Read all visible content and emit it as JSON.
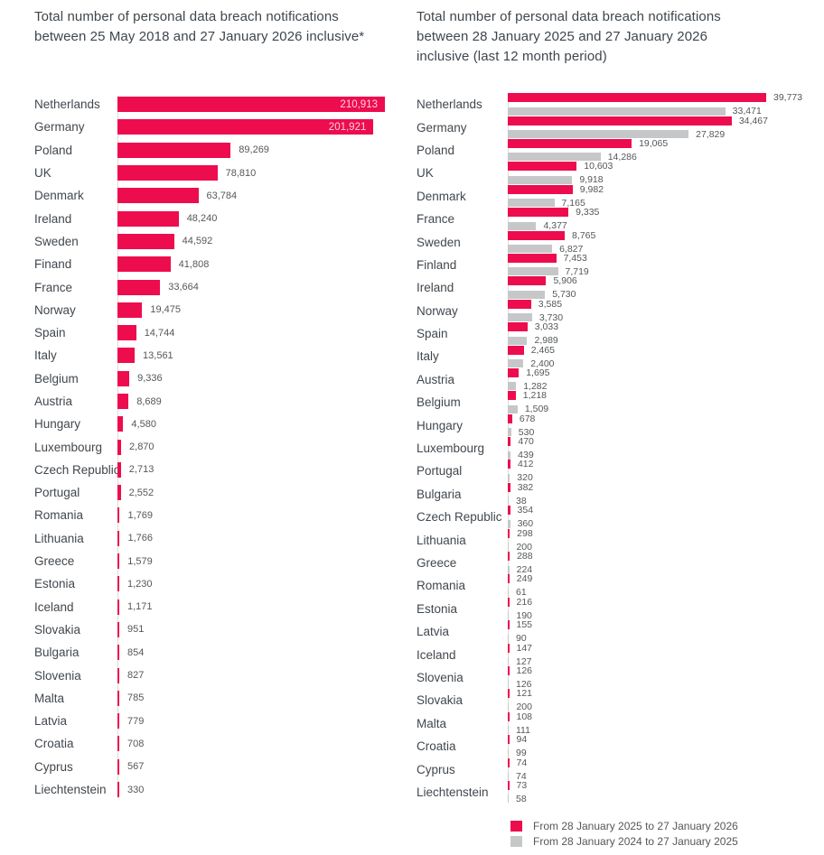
{
  "colors": {
    "current_period_pink": "#ed0c4e",
    "previous_period_gray": "#c6c7c8",
    "title_text": "#3f464c",
    "category_text": "#41474d",
    "value_text": "#54575a",
    "axis_baseline": "#dcdcdc"
  },
  "chart_data": [
    {
      "type": "bar",
      "orientation": "horizontal",
      "title": "Total number of personal data breach notifications between 25 May 2018 and 27 January 2026 inclusive*",
      "categories": [
        "Netherlands",
        "Germany",
        "Poland",
        "UK",
        "Denmark",
        "Ireland",
        "Sweden",
        "Finand",
        "France",
        "Norway",
        "Spain",
        "Italy",
        "Belgium",
        "Austria",
        "Hungary",
        "Luxembourg",
        "Czech Republic",
        "Portugal",
        "Romania",
        "Lithuania",
        "Greece",
        "Estonia",
        "Iceland",
        "Slovakia",
        "Bulgaria",
        "Slovenia",
        "Malta",
        "Latvia",
        "Croatia",
        "Cyprus",
        "Liechtenstein"
      ],
      "values": [
        210913,
        201921,
        89269,
        78810,
        63784,
        48240,
        44592,
        41808,
        33664,
        19475,
        14744,
        13561,
        9336,
        8689,
        4580,
        2870,
        2713,
        2552,
        1769,
        1766,
        1579,
        1230,
        1171,
        951,
        854,
        827,
        785,
        779,
        708,
        567,
        330
      ],
      "bar_color": "#ed0c4e",
      "xlim": [
        0,
        210913
      ],
      "grid": false,
      "legend_position": "none",
      "value_label_style": "inside bar for top two values, outside right otherwise"
    },
    {
      "type": "bar",
      "orientation": "horizontal",
      "title": "Total number of personal data breach notifications between 28 January 2025 and 27 January 2026 inclusive (last 12 month period)",
      "categories": [
        "Netherlands",
        "Germany",
        "Poland",
        "UK",
        "Denmark",
        "France",
        "Sweden",
        "Finland",
        "Ireland",
        "Norway",
        "Spain",
        "Italy",
        "Austria",
        "Belgium",
        "Hungary",
        "Luxembourg",
        "Portugal",
        "Bulgaria",
        "Czech Republic",
        "Lithuania",
        "Greece",
        "Romania",
        "Estonia",
        "Latvia",
        "Iceland",
        "Slovenia",
        "Slovakia",
        "Malta",
        "Croatia",
        "Cyprus",
        "Liechtenstein"
      ],
      "series": [
        {
          "name": "From 28 January 2025 to 27 January 2026",
          "color": "#ed0c4e",
          "values": [
            39773,
            34467,
            19065,
            10603,
            9982,
            9335,
            8765,
            7453,
            5906,
            3585,
            3033,
            2465,
            1695,
            1218,
            678,
            470,
            412,
            382,
            354,
            298,
            288,
            249,
            216,
            155,
            147,
            126,
            121,
            108,
            94,
            74,
            73
          ]
        },
        {
          "name": "From 28 January 2024 to 27 January 2025",
          "color": "#c6c7c8",
          "values": [
            33471,
            27829,
            14286,
            9918,
            7165,
            4377,
            6827,
            7719,
            5730,
            3730,
            2989,
            2400,
            1282,
            1509,
            530,
            439,
            320,
            38,
            360,
            200,
            224,
            61,
            190,
            90,
            127,
            126,
            200,
            111,
            99,
            74,
            58
          ]
        }
      ],
      "xlim": [
        0,
        39773
      ],
      "grid": false,
      "legend_position": "bottom-right"
    }
  ]
}
